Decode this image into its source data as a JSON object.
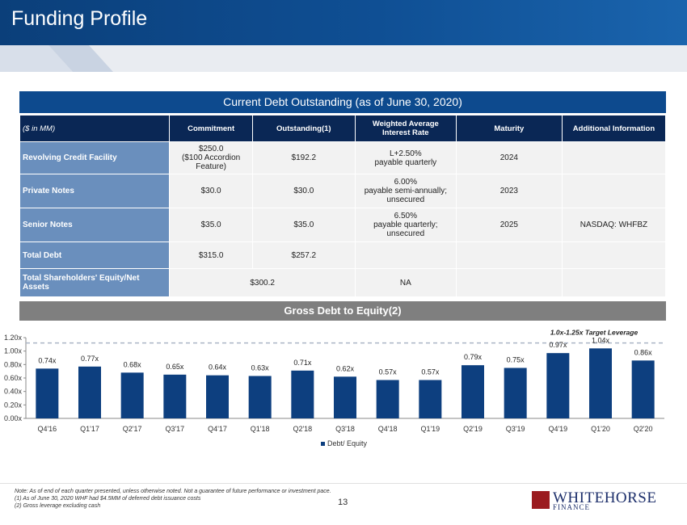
{
  "header": {
    "title": "Funding Profile"
  },
  "debt_section": {
    "title": "Current Debt Outstanding (as of June 30, 2020)",
    "columns": [
      "($ in MM)",
      "Commitment",
      "Outstanding(1)",
      "Weighted Average Interest Rate",
      "Maturity",
      "Additional Information"
    ],
    "rows": [
      {
        "label": "Revolving Credit Facility",
        "commitment": "$250.0",
        "commitment_note": "($100 Accordion Feature)",
        "outstanding": "$192.2",
        "rate": "L+2.50%",
        "rate_note": "payable quarterly",
        "rate_note2": "",
        "maturity": "2024",
        "info": ""
      },
      {
        "label": "Private Notes",
        "commitment": "$30.0",
        "commitment_note": "",
        "outstanding": "$30.0",
        "rate": "6.00%",
        "rate_note": "payable semi-annually;",
        "rate_note2": "unsecured",
        "maturity": "2023",
        "info": ""
      },
      {
        "label": "Senior Notes",
        "commitment": "$35.0",
        "commitment_note": "",
        "outstanding": "$35.0",
        "rate": "6.50%",
        "rate_note": "payable quarterly;",
        "rate_note2": "unsecured",
        "maturity": "2025",
        "info": "NASDAQ: WHFBZ"
      },
      {
        "label": "Total Debt",
        "commitment": "$315.0",
        "commitment_note": "",
        "outstanding": "$257.2",
        "rate": "",
        "rate_note": "",
        "rate_note2": "",
        "maturity": "",
        "info": ""
      }
    ],
    "equity_row": {
      "label": "Total Shareholders' Equity/Net Assets",
      "value": "$300.2",
      "rate": "NA"
    }
  },
  "gross_section": {
    "title": "Gross Debt to Equity(2)"
  },
  "chart_data": {
    "type": "bar",
    "categories": [
      "Q4'16",
      "Q1'17",
      "Q2'17",
      "Q3'17",
      "Q4'17",
      "Q1'18",
      "Q2'18",
      "Q3'18",
      "Q4'18",
      "Q1'19",
      "Q2'19",
      "Q3'19",
      "Q4'19",
      "Q1'20",
      "Q2'20"
    ],
    "series": [
      {
        "name": "Debt/ Equity",
        "values": [
          0.74,
          0.77,
          0.68,
          0.65,
          0.64,
          0.63,
          0.71,
          0.62,
          0.57,
          0.57,
          0.79,
          0.75,
          0.97,
          1.04,
          0.86
        ]
      }
    ],
    "data_labels": [
      "0.74x",
      "0.77x",
      "0.68x",
      "0.65x",
      "0.64x",
      "0.63x",
      "0.71x",
      "0.62x",
      "0.57x",
      "0.57x",
      "0.79x",
      "0.75x",
      "0.97x",
      "1.04x",
      "0.86x"
    ],
    "ylim": [
      0,
      1.2
    ],
    "yticks": [
      "0.00x",
      "0.20x",
      "0.40x",
      "0.60x",
      "0.80x",
      "1.00x",
      "1.20x"
    ],
    "target_line": {
      "value": 1.12,
      "label": "1.0x-1.25x Target Leverage"
    },
    "bar_color": "#0d3f7f",
    "legend_position": "bottom",
    "grid": false
  },
  "footer": {
    "note": "Note: As of end of each quarter presented, unless otherwise noted. Not a guarantee of future performance or investment pace.",
    "fn1": "(1)    As of June 30, 2020 WHF had $4.5MM of deferred debt issuance costs",
    "fn2": "(2)    Gross leverage excluding cash",
    "page_number": "13",
    "logo_name": "WHITEHORSE",
    "logo_sub": "FINANCE"
  }
}
